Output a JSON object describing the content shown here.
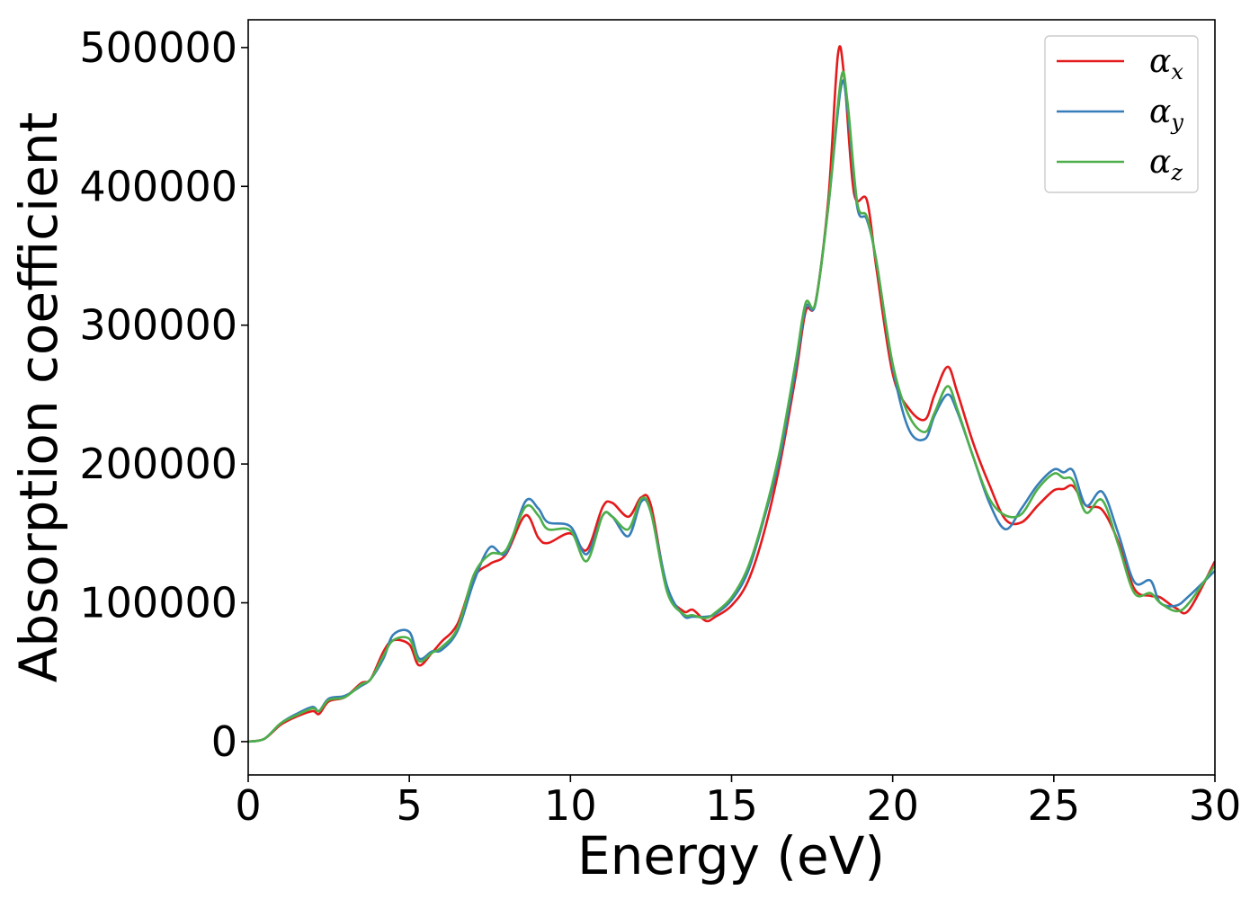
{
  "chart_data": {
    "type": "line",
    "title": "",
    "xlabel": "Energy (eV)",
    "ylabel": "Absorption coefficient",
    "xlim": [
      0,
      30
    ],
    "ylim": [
      -24000,
      520000
    ],
    "xticks": [
      0,
      5,
      10,
      15,
      20,
      25,
      30
    ],
    "yticks": [
      0,
      100000,
      200000,
      300000,
      400000,
      500000
    ],
    "xtick_labels": [
      "0",
      "5",
      "10",
      "15",
      "20",
      "25",
      "30"
    ],
    "ytick_labels": [
      "0",
      "100000",
      "200000",
      "300000",
      "400000",
      "500000"
    ],
    "grid": false,
    "legend_position": "top-right",
    "series": [
      {
        "name": "α",
        "subscript": "x",
        "color": "#e41a1c",
        "x": [
          0,
          0.5,
          1,
          1.5,
          2,
          2.2,
          2.5,
          3,
          3.5,
          3.8,
          4.2,
          4.5,
          5,
          5.3,
          5.7,
          6,
          6.5,
          7,
          7.5,
          8,
          8.6,
          9,
          9.3,
          10,
          10.5,
          11,
          11.3,
          11.8,
          12.2,
          12.5,
          13,
          13.5,
          13.8,
          14.2,
          14.5,
          15,
          15.5,
          16,
          16.5,
          17,
          17.3,
          17.6,
          18,
          18.3,
          18.5,
          18.8,
          19.2,
          19.5,
          20,
          20.5,
          21,
          21.3,
          21.7,
          22,
          22.5,
          23,
          23.5,
          24,
          24.5,
          25,
          25.3,
          25.6,
          26,
          26.5,
          27,
          27.5,
          28,
          28.3,
          28.8,
          29.2,
          30
        ],
        "values": [
          0,
          2000,
          12000,
          18000,
          22000,
          20000,
          29000,
          32000,
          42000,
          45000,
          65000,
          73000,
          70000,
          55000,
          64000,
          72000,
          85000,
          118000,
          128000,
          135000,
          163000,
          147000,
          143000,
          150000,
          138000,
          169000,
          172000,
          162000,
          176000,
          170000,
          110000,
          94000,
          95000,
          87000,
          90000,
          98000,
          115000,
          150000,
          200000,
          265000,
          310000,
          316000,
          390000,
          495000,
          478000,
          395000,
          390000,
          340000,
          265000,
          240000,
          232000,
          250000,
          270000,
          252000,
          215000,
          185000,
          160000,
          158000,
          170000,
          181000,
          182000,
          184000,
          170000,
          167000,
          144000,
          110000,
          105000,
          104000,
          96000,
          95000,
          130000
        ]
      },
      {
        "name": "α",
        "subscript": "y",
        "color": "#377eb8",
        "x": [
          0,
          0.5,
          1,
          1.5,
          2,
          2.2,
          2.5,
          3,
          3.5,
          3.8,
          4.2,
          4.5,
          5,
          5.3,
          5.7,
          6,
          6.5,
          7,
          7.5,
          8,
          8.6,
          9,
          9.3,
          10,
          10.5,
          11,
          11.3,
          11.8,
          12.2,
          12.5,
          13,
          13.5,
          13.8,
          14.2,
          14.5,
          15,
          15.5,
          16,
          16.5,
          17,
          17.3,
          17.6,
          18,
          18.4,
          18.6,
          18.9,
          19.2,
          19.5,
          20,
          20.5,
          21,
          21.3,
          21.7,
          22,
          22.5,
          23,
          23.5,
          24,
          24.5,
          25,
          25.3,
          25.6,
          26,
          26.5,
          27,
          27.5,
          28,
          28.3,
          28.8,
          29.2,
          30
        ],
        "values": [
          0,
          2000,
          13000,
          20000,
          25000,
          22000,
          31000,
          33000,
          40000,
          45000,
          60000,
          77000,
          79000,
          60000,
          65000,
          66000,
          80000,
          115000,
          140000,
          136000,
          173000,
          168000,
          158000,
          155000,
          135000,
          163000,
          162000,
          148000,
          173000,
          165000,
          112000,
          91000,
          90000,
          90000,
          92000,
          102000,
          122000,
          160000,
          205000,
          270000,
          313000,
          315000,
          385000,
          472000,
          455000,
          385000,
          376000,
          345000,
          270000,
          225000,
          218000,
          235000,
          250000,
          238000,
          205000,
          172000,
          153000,
          168000,
          185000,
          196000,
          194000,
          195000,
          170000,
          180000,
          150000,
          115000,
          116000,
          100000,
          98000,
          105000,
          123000
        ]
      },
      {
        "name": "α",
        "subscript": "z",
        "color": "#4daf4a",
        "x": [
          0,
          0.5,
          1,
          1.5,
          2,
          2.2,
          2.5,
          3,
          3.5,
          3.8,
          4.2,
          4.5,
          5,
          5.3,
          5.7,
          6,
          6.5,
          7,
          7.5,
          8,
          8.6,
          9,
          9.3,
          10,
          10.5,
          11,
          11.3,
          11.8,
          12.2,
          12.5,
          13,
          13.5,
          13.8,
          14.2,
          14.5,
          15,
          15.5,
          16,
          16.5,
          17,
          17.3,
          17.6,
          18,
          18.4,
          18.6,
          18.9,
          19.2,
          19.5,
          20,
          20.5,
          21,
          21.3,
          21.7,
          22,
          22.5,
          23,
          23.5,
          24,
          24.5,
          25,
          25.3,
          25.6,
          26,
          26.5,
          27,
          27.5,
          28,
          28.3,
          28.8,
          29.2,
          30
        ],
        "values": [
          0,
          2000,
          13000,
          19000,
          24000,
          22000,
          30000,
          32000,
          41000,
          45000,
          62000,
          73000,
          74000,
          58000,
          64000,
          68000,
          82000,
          120000,
          135000,
          138000,
          169000,
          163000,
          153000,
          152000,
          130000,
          163000,
          162000,
          153000,
          175000,
          165000,
          108000,
          92000,
          91000,
          89000,
          93000,
          104000,
          125000,
          162000,
          210000,
          275000,
          316000,
          316000,
          385000,
          478000,
          460000,
          388000,
          378000,
          345000,
          272000,
          235000,
          223000,
          237000,
          256000,
          240000,
          205000,
          175000,
          163000,
          164000,
          182000,
          193000,
          190000,
          188000,
          165000,
          174000,
          142000,
          107000,
          107000,
          100000,
          94000,
          100000,
          127000
        ]
      }
    ]
  }
}
